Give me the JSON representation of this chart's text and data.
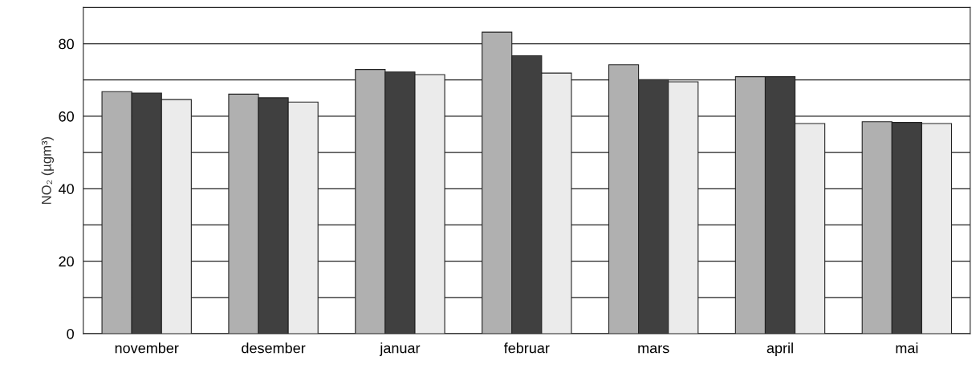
{
  "chart_data": {
    "type": "bar",
    "ylabel": "NO₂ (µgm³)",
    "categories": [
      "november",
      "desember",
      "januar",
      "februar",
      "mars",
      "april",
      "mai"
    ],
    "series": [
      {
        "color": "#b0b0b0",
        "values": [
          66.8,
          66.1,
          72.9,
          83.2,
          74.2,
          70.9,
          58.5
        ]
      },
      {
        "color": "#404040",
        "values": [
          66.4,
          65.1,
          72.2,
          76.7,
          70.1,
          70.9,
          58.3
        ]
      },
      {
        "color": "#ebebeb",
        "values": [
          64.6,
          63.9,
          71.5,
          71.9,
          69.5,
          58.0,
          58.0
        ]
      }
    ],
    "ylim": [
      0,
      90
    ],
    "yticks": [
      0,
      {
        "value": 10,
        "label": null
      },
      20,
      {
        "value": 30,
        "label": null
      },
      40,
      {
        "value": 50,
        "label": null
      },
      60,
      {
        "value": 70,
        "label": null
      },
      80,
      {
        "value": 90,
        "label": null
      }
    ],
    "grid": "y",
    "legend": false
  }
}
